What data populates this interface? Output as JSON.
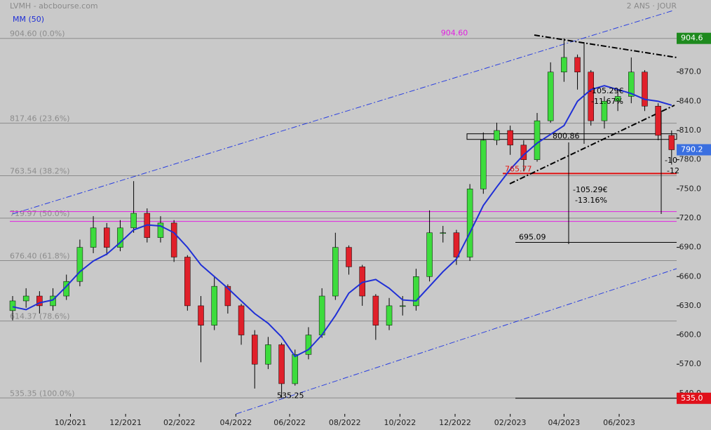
{
  "header": {
    "title": "LVMH - abcbourse.com",
    "period": "2 ANS · JOUR"
  },
  "chart_data": {
    "type": "candlestick",
    "series": [
      {
        "name": "MM (50)",
        "color": "#1f2fd6",
        "values": [
          629,
          626,
          633,
          636,
          650,
          665,
          676,
          683,
          695,
          708,
          713,
          712,
          705,
          690,
          672,
          660,
          648,
          635,
          622,
          612,
          598,
          578,
          585,
          600,
          620,
          643,
          654,
          657,
          648,
          636,
          635,
          650,
          665,
          678,
          705,
          733,
          752,
          770,
          785,
          797,
          806,
          815,
          840,
          852,
          856,
          852,
          848,
          842,
          840,
          836
        ]
      }
    ],
    "open": [
      625,
      635,
      640,
      630,
      640,
      655,
      690,
      710,
      690,
      710,
      725,
      700,
      715,
      680,
      630,
      610,
      650,
      630,
      600,
      570,
      590,
      550,
      580,
      600,
      640,
      690,
      670,
      640,
      610,
      630,
      630,
      660,
      705,
      705,
      680,
      750,
      800,
      810,
      795,
      780,
      820,
      870,
      885,
      870,
      820,
      840,
      845,
      870,
      835,
      805
    ],
    "high": [
      640,
      648,
      645,
      648,
      662,
      698,
      722,
      715,
      718,
      758,
      730,
      722,
      718,
      682,
      640,
      660,
      652,
      632,
      605,
      598,
      592,
      585,
      608,
      648,
      705,
      692,
      672,
      642,
      638,
      640,
      668,
      728,
      712,
      708,
      755,
      808,
      818,
      815,
      800,
      828,
      880,
      904.6,
      888,
      872,
      845,
      852,
      885,
      872,
      838,
      810
    ],
    "low": [
      615,
      628,
      622,
      625,
      636,
      650,
      684,
      682,
      686,
      705,
      695,
      695,
      675,
      625,
      572,
      605,
      622,
      590,
      545,
      565,
      535.25,
      548,
      575,
      597,
      636,
      662,
      630,
      595,
      605,
      620,
      625,
      655,
      695,
      672,
      676,
      745,
      795,
      785,
      768,
      778,
      818,
      860,
      852,
      815,
      812,
      830,
      838,
      830,
      800,
      775
    ],
    "close": [
      635,
      640,
      630,
      640,
      655,
      690,
      710,
      690,
      710,
      725,
      700,
      715,
      680,
      630,
      610,
      650,
      630,
      600,
      570,
      590,
      550,
      580,
      600,
      640,
      690,
      670,
      640,
      610,
      630,
      630,
      660,
      705,
      705,
      680,
      750,
      800,
      810,
      795,
      780,
      820,
      870,
      885,
      870,
      820,
      840,
      845,
      870,
      835,
      805,
      790.2
    ],
    "up_color": "#3ddc3d",
    "down_color": "#e0202a",
    "ylim": [
      519,
      944
    ],
    "yticks": [
      {
        "value": 540,
        "label": "540.0"
      },
      {
        "value": 570,
        "label": "570.0"
      },
      {
        "value": 600,
        "label": "600.0"
      },
      {
        "value": 630,
        "label": "630.0"
      },
      {
        "value": 660,
        "label": "660.0"
      },
      {
        "value": 690,
        "label": "690.0"
      },
      {
        "value": 720,
        "label": "720.0"
      },
      {
        "value": 750,
        "label": "750.0"
      },
      {
        "value": 780,
        "label": "780.0"
      },
      {
        "value": 810,
        "label": "810.0"
      },
      {
        "value": 840,
        "label": "840.0"
      },
      {
        "value": 870,
        "label": "870.0"
      }
    ],
    "xticks": [
      {
        "value": 4.3,
        "label": "10/2021"
      },
      {
        "value": 8.4,
        "label": "12/2021"
      },
      {
        "value": 12.4,
        "label": "02/2022"
      },
      {
        "value": 16.6,
        "label": "04/2022"
      },
      {
        "value": 20.6,
        "label": "06/2022"
      },
      {
        "value": 24.7,
        "label": "08/2022"
      },
      {
        "value": 28.8,
        "label": "10/2022"
      },
      {
        "value": 32.9,
        "label": "12/2022"
      },
      {
        "value": 37.0,
        "label": "02/2023"
      },
      {
        "value": 41.0,
        "label": "04/2023"
      },
      {
        "value": 45.1,
        "label": "06/2023"
      }
    ],
    "fibonacci": [
      {
        "value": 904.6,
        "label": "904.60 (0.0%)"
      },
      {
        "value": 817.46,
        "label": "817.46 (23.6%)"
      },
      {
        "value": 763.54,
        "label": "763.54 (38.2%)"
      },
      {
        "value": 719.97,
        "label": "719.97 (50.0%)"
      },
      {
        "value": 676.4,
        "label": "676.40 (61.8%)"
      },
      {
        "value": 614.37,
        "label": "614.37 (78.6%)"
      },
      {
        "value": 535.35,
        "label": "535.35 (100.0%)"
      }
    ],
    "magenta_lines": [
      726.7,
      716.6
    ],
    "top_label": {
      "value": 904.6,
      "label": "904.60"
    },
    "support": 800.86,
    "red_level": 765.77,
    "target": 695.09,
    "low_label": 535.25,
    "price_markers": [
      {
        "value": 904.6,
        "color": "#1e8a1e"
      },
      {
        "value": 790.2,
        "color": "#3a6fe0"
      },
      {
        "value": 535,
        "label": "535.0",
        "color": "#e0101a"
      }
    ],
    "measure_1": [
      "-105.29€",
      "-11.67%"
    ],
    "measure_2": [
      "-105.29€",
      "-13.16%"
    ],
    "measure_3": [
      "-10",
      "-12"
    ]
  }
}
